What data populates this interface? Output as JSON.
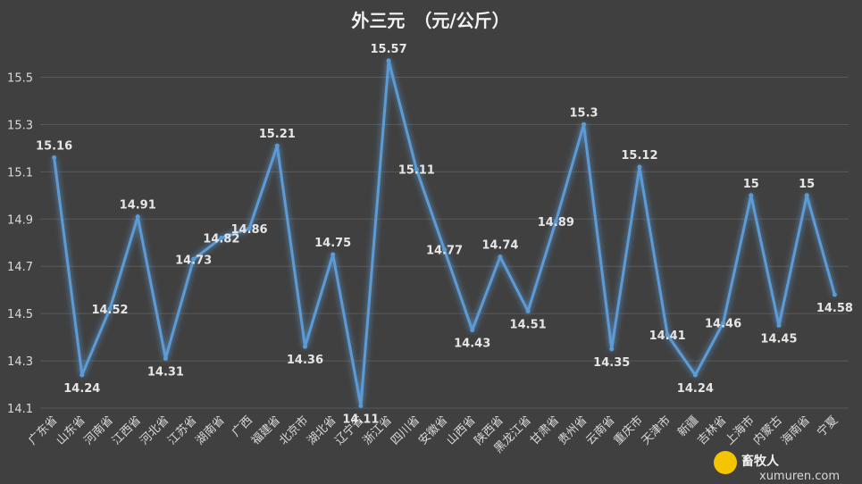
{
  "chart_data": {
    "type": "line",
    "title": "外三元　（元/公斤）",
    "xlabel": "",
    "ylabel": "",
    "ylim": [
      14.1,
      15.6
    ],
    "yticks": [
      14.1,
      14.3,
      14.5,
      14.7,
      14.9,
      15.1,
      15.3,
      15.5
    ],
    "grid": true,
    "legend": "none",
    "line_color": "#5b9bd5",
    "categories": [
      "广东省",
      "山东省",
      "河南省",
      "江西省",
      "河北省",
      "江苏省",
      "湖南省",
      "广西",
      "福建省",
      "北京市",
      "湖北省",
      "辽宁省",
      "浙江省",
      "四川省",
      "安徽省",
      "山西省",
      "陕西省",
      "黑龙江省",
      "甘肃省",
      "贵州省",
      "云南省",
      "重庆市",
      "天津市",
      "新疆",
      "吉林省",
      "上海市",
      "内蒙古",
      "海南省",
      "宁夏"
    ],
    "series": [
      {
        "values": [
          15.16,
          14.24,
          14.52,
          14.91,
          14.31,
          14.73,
          14.82,
          14.86,
          15.21,
          14.36,
          14.75,
          14.11,
          15.57,
          15.11,
          14.77,
          14.43,
          14.74,
          14.51,
          14.89,
          15.3,
          14.35,
          15.12,
          14.41,
          14.24,
          14.46,
          15,
          14.45,
          15,
          14.58
        ]
      }
    ]
  },
  "watermark": {
    "brand": "畜牧人",
    "url": "xumuren.com"
  }
}
